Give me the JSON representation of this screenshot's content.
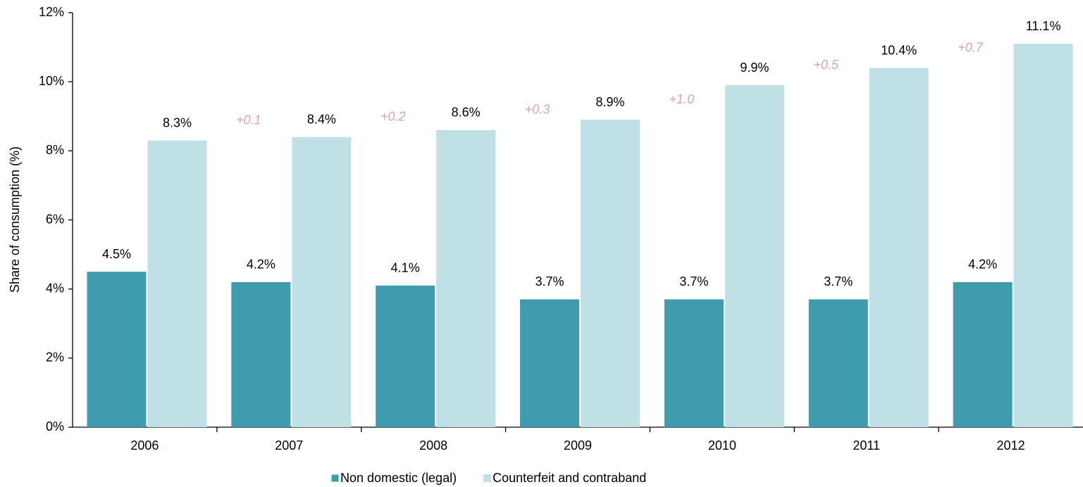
{
  "chart_data": {
    "type": "bar",
    "y_label": "Share of consumption (%)",
    "categories": [
      "2006",
      "2007",
      "2008",
      "2009",
      "2010",
      "2011",
      "2012"
    ],
    "series": [
      {
        "name": "Non domestic (legal)",
        "color": "#3f9caf",
        "values": [
          4.5,
          4.2,
          4.1,
          3.7,
          3.7,
          3.7,
          4.2
        ],
        "value_labels": [
          "4.5%",
          "4.2%",
          "4.1%",
          "3.7%",
          "3.7%",
          "3.7%",
          "4.2%"
        ]
      },
      {
        "name": "Counterfeit and contraband",
        "color": "#bfe0e4",
        "values": [
          8.3,
          8.4,
          8.6,
          8.9,
          9.9,
          10.4,
          11.1
        ],
        "value_labels": [
          "8.3%",
          "8.4%",
          "8.6%",
          "8.9%",
          "9.9%",
          "10.4%",
          "11.1%"
        ]
      }
    ],
    "annotations": [
      null,
      "+0.1",
      "+0.2",
      "+0.3",
      "+1.0",
      "+0.5",
      "+0.7"
    ],
    "annotation_color": "#d8a4ab",
    "ylim": [
      0,
      12
    ],
    "yticks": [
      {
        "value": 0,
        "label": "0%"
      },
      {
        "value": 2,
        "label": "2%"
      },
      {
        "value": 4,
        "label": "4%"
      },
      {
        "value": 6,
        "label": "6%"
      },
      {
        "value": 8,
        "label": "8%"
      },
      {
        "value": 10,
        "label": "10%"
      },
      {
        "value": 12,
        "label": "12%"
      }
    ],
    "grid": false,
    "legend": "bottom"
  }
}
